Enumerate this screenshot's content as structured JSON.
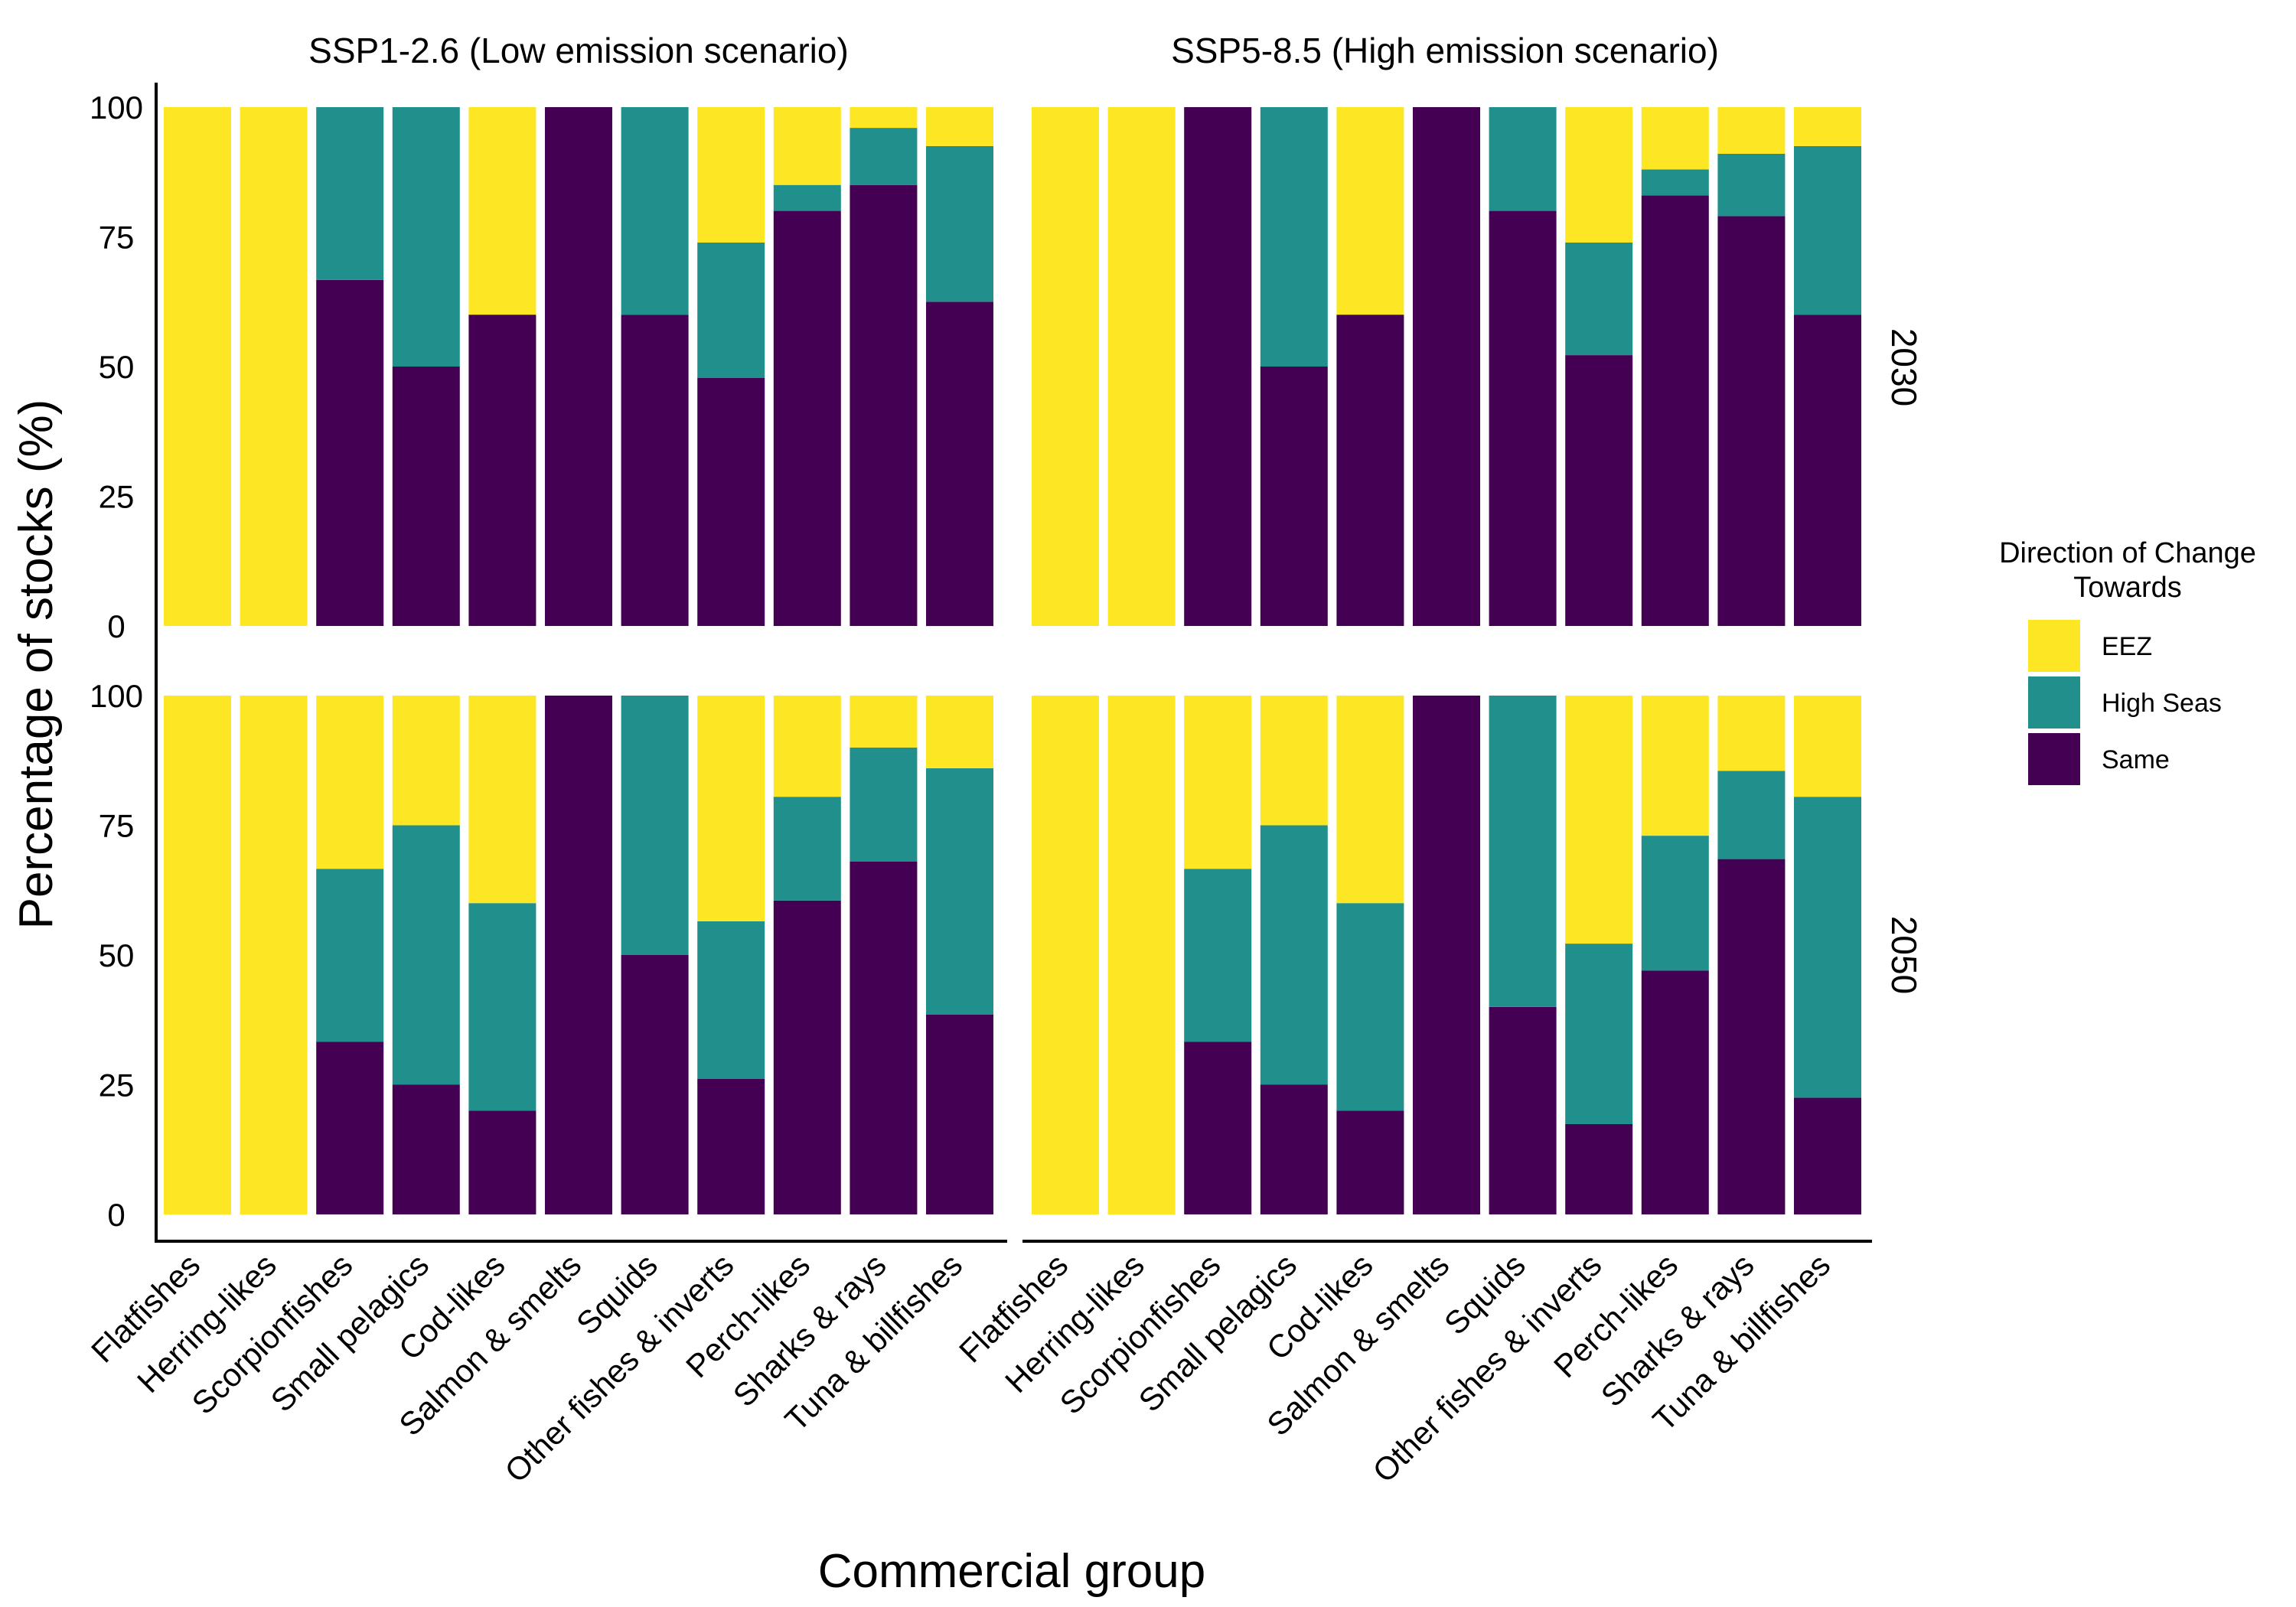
{
  "chart_data": {
    "type": "bar",
    "stacked": true,
    "layout": "facet grid: columns = scenario, rows = year",
    "xlabel": "Commercial group",
    "ylabel": "Percentage of stocks (%)",
    "ylim": [
      0,
      100
    ],
    "yticks": [
      "0",
      "25",
      "50",
      "75",
      "100"
    ],
    "grid": false,
    "categories": [
      "Flatfishes",
      "Herring-likes",
      "Scorpionfishes",
      "Small pelagics",
      "Cod-likes",
      "Salmon & smelts",
      "Squids",
      "Other fishes & inverts",
      "Perch-likes",
      "Sharks & rays",
      "Tuna & billfishes"
    ],
    "columns": [
      "SSP1-2.6 (Low emission scenario)",
      "SSP5-8.5 (High emission scenario)"
    ],
    "rows": [
      "2030",
      "2050"
    ],
    "legend": {
      "title_line1": "Direction of Change",
      "title_line2": "Towards",
      "position": "right",
      "entries": [
        {
          "name": "EEZ",
          "color": "#FDE725"
        },
        {
          "name": "High Seas",
          "color": "#21908C"
        },
        {
          "name": "Same",
          "color": "#440154"
        }
      ]
    },
    "panels": [
      {
        "column": "SSP1-2.6 (Low emission scenario)",
        "row": "2030",
        "series": [
          {
            "name": "Same",
            "values": [
              0,
              0,
              66.7,
              50,
              60,
              100,
              60,
              47.8,
              80,
              85,
              62.5
            ]
          },
          {
            "name": "High Seas",
            "values": [
              0,
              0,
              33.3,
              50,
              0,
              0,
              40,
              26.1,
              5,
              11,
              30
            ]
          },
          {
            "name": "EEZ",
            "values": [
              100,
              100,
              0,
              0,
              40,
              0,
              0,
              26.1,
              15,
              4,
              7.5
            ]
          }
        ]
      },
      {
        "column": "SSP5-8.5 (High emission scenario)",
        "row": "2030",
        "series": [
          {
            "name": "Same",
            "values": [
              0,
              0,
              100,
              50,
              60,
              100,
              80,
              52.2,
              83,
              79,
              60
            ]
          },
          {
            "name": "High Seas",
            "values": [
              0,
              0,
              0,
              50,
              0,
              0,
              20,
              21.7,
              5,
              12,
              32.5
            ]
          },
          {
            "name": "EEZ",
            "values": [
              100,
              100,
              0,
              0,
              40,
              0,
              0,
              26.1,
              12,
              9,
              7.5
            ]
          }
        ]
      },
      {
        "column": "SSP1-2.6 (Low emission scenario)",
        "row": "2050",
        "series": [
          {
            "name": "Same",
            "values": [
              0,
              0,
              33.3,
              25,
              20,
              100,
              50,
              26.1,
              60.5,
              68,
              38.5
            ]
          },
          {
            "name": "High Seas",
            "values": [
              0,
              0,
              33.3,
              50,
              40,
              0,
              50,
              30.4,
              20,
              22,
              47.5
            ]
          },
          {
            "name": "EEZ",
            "values": [
              100,
              100,
              33.4,
              25,
              40,
              0,
              0,
              43.5,
              19.5,
              10,
              14
            ]
          }
        ]
      },
      {
        "column": "SSP5-8.5 (High emission scenario)",
        "row": "2050",
        "series": [
          {
            "name": "Same",
            "values": [
              0,
              0,
              33.3,
              25,
              20,
              100,
              40,
              17.4,
              47,
              68.5,
              22.5
            ]
          },
          {
            "name": "High Seas",
            "values": [
              0,
              0,
              33.3,
              50,
              40,
              0,
              60,
              34.8,
              26,
              17,
              58
            ]
          },
          {
            "name": "EEZ",
            "values": [
              100,
              100,
              33.4,
              25,
              40,
              0,
              0,
              47.8,
              27,
              14.5,
              19.5
            ]
          }
        ]
      }
    ]
  }
}
